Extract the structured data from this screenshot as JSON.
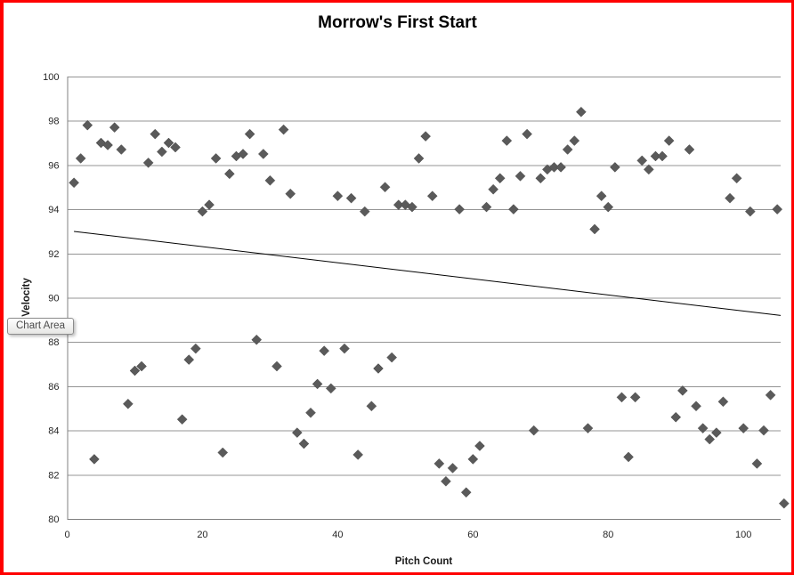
{
  "window": {
    "border_color": "#FF0000",
    "background": "#FFFFFF",
    "tooltip_label": "Chart Area"
  },
  "chart_data": {
    "type": "scatter",
    "title": "Morrow's First Start",
    "xlabel": "Pitch Count",
    "ylabel": "Velocity",
    "xlim": [
      0,
      105.5
    ],
    "ylim": [
      80,
      100
    ],
    "x_ticks": [
      0,
      20,
      40,
      60,
      80,
      100
    ],
    "y_ticks": [
      80,
      82,
      84,
      86,
      88,
      90,
      92,
      94,
      96,
      98,
      100
    ],
    "grid": "horizontal-major",
    "legend": "none",
    "grid_color": "#949494",
    "axis_color": "#808080",
    "tick_label_color": "#262626",
    "marker": {
      "shape": "diamond",
      "color": "#5A5A5A",
      "size": 11
    },
    "trendline": {
      "type": "linear",
      "x1": 1,
      "y1": 93.0,
      "x2": 105.5,
      "y2": 89.2,
      "color": "#000000"
    },
    "points": [
      [
        1,
        95.2
      ],
      [
        2,
        96.3
      ],
      [
        3,
        97.8
      ],
      [
        4,
        82.7
      ],
      [
        5,
        97.0
      ],
      [
        6,
        96.9
      ],
      [
        7,
        97.7
      ],
      [
        8,
        96.7
      ],
      [
        9,
        85.2
      ],
      [
        10,
        86.7
      ],
      [
        11,
        86.9
      ],
      [
        12,
        96.1
      ],
      [
        13,
        97.4
      ],
      [
        14,
        96.6
      ],
      [
        15,
        97.0
      ],
      [
        16,
        96.8
      ],
      [
        17,
        84.5
      ],
      [
        18,
        87.2
      ],
      [
        19,
        87.7
      ],
      [
        20,
        93.9
      ],
      [
        21,
        94.2
      ],
      [
        22,
        96.3
      ],
      [
        23,
        83.0
      ],
      [
        24,
        95.6
      ],
      [
        25,
        96.4
      ],
      [
        26,
        96.5
      ],
      [
        27,
        97.4
      ],
      [
        28,
        88.1
      ],
      [
        29,
        96.5
      ],
      [
        30,
        95.3
      ],
      [
        31,
        86.9
      ],
      [
        32,
        97.6
      ],
      [
        33,
        94.7
      ],
      [
        34,
        83.9
      ],
      [
        35,
        83.4
      ],
      [
        36,
        84.8
      ],
      [
        37,
        86.1
      ],
      [
        38,
        87.6
      ],
      [
        39,
        85.9
      ],
      [
        40,
        94.6
      ],
      [
        41,
        87.7
      ],
      [
        42,
        94.5
      ],
      [
        43,
        82.9
      ],
      [
        44,
        93.9
      ],
      [
        45,
        85.1
      ],
      [
        46,
        86.8
      ],
      [
        47,
        95.0
      ],
      [
        48,
        87.3
      ],
      [
        49,
        94.2
      ],
      [
        50,
        94.2
      ],
      [
        51,
        94.1
      ],
      [
        52,
        96.3
      ],
      [
        53,
        97.3
      ],
      [
        54,
        94.6
      ],
      [
        55,
        82.5
      ],
      [
        56,
        81.7
      ],
      [
        57,
        82.3
      ],
      [
        58,
        94.0
      ],
      [
        59,
        81.2
      ],
      [
        60,
        82.7
      ],
      [
        61,
        83.3
      ],
      [
        62,
        94.1
      ],
      [
        63,
        94.9
      ],
      [
        64,
        95.4
      ],
      [
        65,
        97.1
      ],
      [
        66,
        94.0
      ],
      [
        67,
        95.5
      ],
      [
        68,
        97.4
      ],
      [
        69,
        84.0
      ],
      [
        70,
        95.4
      ],
      [
        71,
        95.8
      ],
      [
        72,
        95.9
      ],
      [
        73,
        95.9
      ],
      [
        74,
        96.7
      ],
      [
        75,
        97.1
      ],
      [
        76,
        98.4
      ],
      [
        77,
        84.1
      ],
      [
        78,
        93.1
      ],
      [
        79,
        94.6
      ],
      [
        80,
        94.1
      ],
      [
        81,
        95.9
      ],
      [
        82,
        85.5
      ],
      [
        83,
        82.8
      ],
      [
        84,
        85.5
      ],
      [
        85,
        96.2
      ],
      [
        86,
        95.8
      ],
      [
        87,
        96.4
      ],
      [
        88,
        96.4
      ],
      [
        89,
        97.1
      ],
      [
        90,
        84.6
      ],
      [
        91,
        85.8
      ],
      [
        92,
        96.7
      ],
      [
        93,
        85.1
      ],
      [
        94,
        84.1
      ],
      [
        95,
        83.6
      ],
      [
        96,
        83.9
      ],
      [
        97,
        85.3
      ],
      [
        98,
        94.5
      ],
      [
        99,
        95.4
      ],
      [
        100,
        84.1
      ],
      [
        101,
        93.9
      ],
      [
        102,
        82.5
      ],
      [
        103,
        84.0
      ],
      [
        104,
        85.6
      ],
      [
        105,
        94.0
      ],
      [
        106,
        80.7
      ]
    ]
  }
}
